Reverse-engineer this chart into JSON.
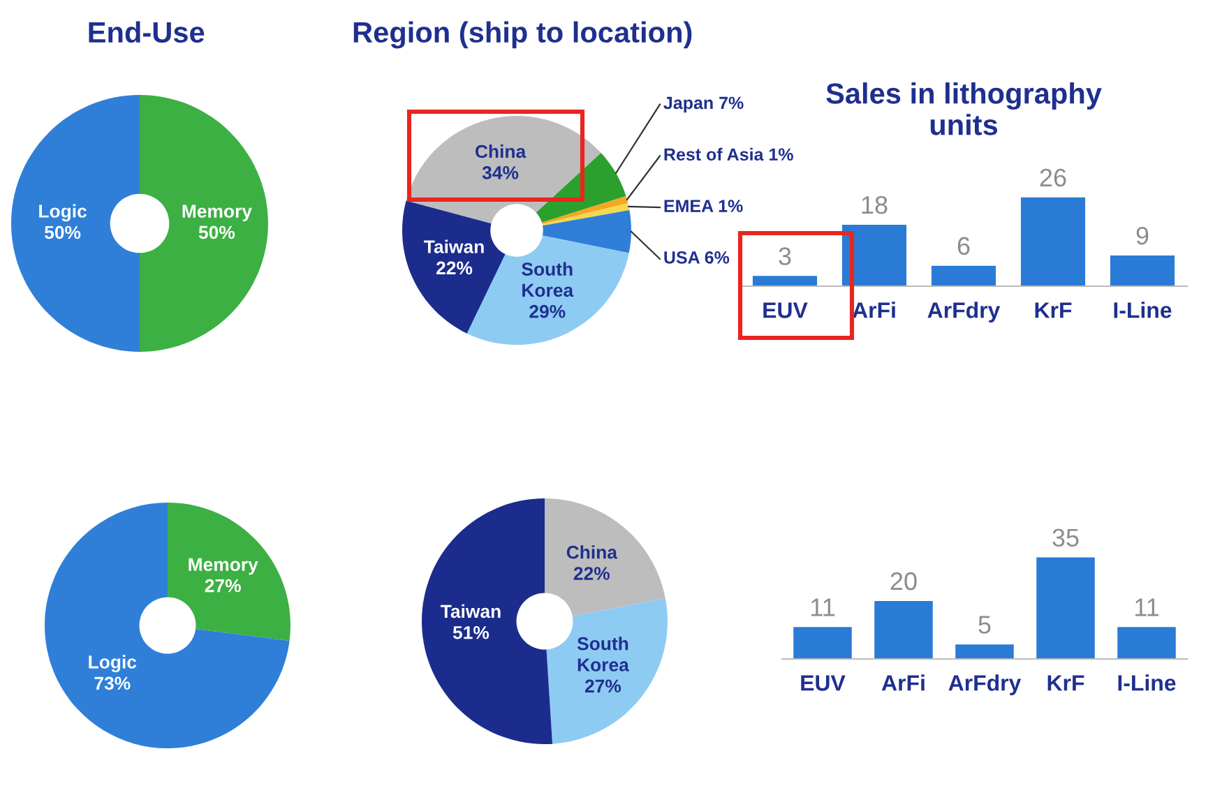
{
  "chart_data": [
    {
      "type": "donut",
      "title": "End-Use",
      "categories": [
        "Memory",
        "Logic"
      ],
      "values": [
        50,
        50
      ],
      "value_labels": [
        "50%",
        "50%"
      ],
      "colors": [
        "#3cb043",
        "#2f7fd8"
      ]
    },
    {
      "type": "donut",
      "title": "Region (ship to location)",
      "categories": [
        "China",
        "Japan",
        "Rest of Asia",
        "EMEA",
        "USA",
        "South Korea",
        "Taiwan"
      ],
      "values": [
        34,
        7,
        1,
        1,
        6,
        29,
        22
      ],
      "value_labels": [
        "34%",
        "7%",
        "1%",
        "1%",
        "6%",
        "29%",
        "22%"
      ],
      "colors": [
        "#bdbdbd",
        "#2ca02c",
        "#f5a623",
        "#f2d94e",
        "#2f7fd8",
        "#8ecbf3",
        "#1b2c8c"
      ]
    },
    {
      "type": "bar",
      "title": "Sales in lithography\nunits",
      "categories": [
        "EUV",
        "ArFi",
        "ArFdry",
        "KrF",
        "I-Line"
      ],
      "values": [
        3,
        18,
        6,
        26,
        9
      ],
      "color": "#2a7bd6",
      "data_labels": true
    },
    {
      "type": "donut",
      "categories": [
        "Memory",
        "Logic"
      ],
      "values": [
        27,
        73
      ],
      "value_labels": [
        "27%",
        "73%"
      ],
      "colors": [
        "#3cb043",
        "#2f7fd8"
      ]
    },
    {
      "type": "donut",
      "categories": [
        "China",
        "South Korea",
        "Taiwan"
      ],
      "values": [
        22,
        27,
        51
      ],
      "value_labels": [
        "22%",
        "27%",
        "51%"
      ],
      "colors": [
        "#bdbdbd",
        "#8ecbf3",
        "#1b2c8c"
      ]
    },
    {
      "type": "bar",
      "categories": [
        "EUV",
        "ArFi",
        "ArFdry",
        "KrF",
        "I-Line"
      ],
      "values": [
        11,
        20,
        5,
        35,
        11
      ],
      "color": "#2a7bd6",
      "data_labels": true
    }
  ]
}
